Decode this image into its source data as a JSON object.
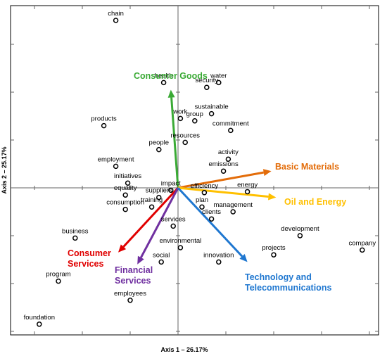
{
  "chart_data": {
    "type": "scatter",
    "xlabel": "Axis 1 – 26.17%",
    "ylabel": "Axis 2 – 25.17%",
    "grid": false,
    "xlim": [
      -3,
      4
    ],
    "ylim": [
      -3.5,
      4.1
    ],
    "points": [
      {
        "label": "chain",
        "x": -1.3,
        "y": 3.5
      },
      {
        "label": "health",
        "x": -0.3,
        "y": 2.2
      },
      {
        "label": "water",
        "x": 0.85,
        "y": 2.2
      },
      {
        "label": "security",
        "x": 0.6,
        "y": 2.1
      },
      {
        "label": "work",
        "x": 0.05,
        "y": 1.45
      },
      {
        "label": "sustainable",
        "x": 0.7,
        "y": 1.55
      },
      {
        "label": "group",
        "x": 0.35,
        "y": 1.4
      },
      {
        "label": "commitment",
        "x": 1.1,
        "y": 1.2
      },
      {
        "label": "products",
        "x": -1.55,
        "y": 1.3
      },
      {
        "label": "people",
        "x": -0.4,
        "y": 0.8
      },
      {
        "label": "resources",
        "x": 0.15,
        "y": 0.95
      },
      {
        "label": "activity",
        "x": 1.05,
        "y": 0.6
      },
      {
        "label": "emissions",
        "x": 0.95,
        "y": 0.35
      },
      {
        "label": "employment",
        "x": -1.3,
        "y": 0.45
      },
      {
        "label": "initiatives",
        "x": -1.05,
        "y": 0.1
      },
      {
        "label": "impact",
        "x": -0.15,
        "y": -0.05
      },
      {
        "label": "energy",
        "x": 1.45,
        "y": -0.08
      },
      {
        "label": "equality",
        "x": -1.1,
        "y": -0.15
      },
      {
        "label": "suppliers",
        "x": -0.4,
        "y": -0.2
      },
      {
        "label": "efficiency",
        "x": 0.55,
        "y": -0.1
      },
      {
        "label": "training",
        "x": -0.55,
        "y": -0.4
      },
      {
        "label": "plan",
        "x": 0.5,
        "y": -0.4
      },
      {
        "label": "management",
        "x": 1.15,
        "y": -0.5
      },
      {
        "label": "consumption",
        "x": -1.1,
        "y": -0.45
      },
      {
        "label": "clients",
        "x": 0.7,
        "y": -0.65
      },
      {
        "label": "services",
        "x": -0.1,
        "y": -0.8
      },
      {
        "label": "business",
        "x": -2.15,
        "y": -1.05
      },
      {
        "label": "development",
        "x": 2.55,
        "y": -1.0
      },
      {
        "label": "environmental",
        "x": 0.05,
        "y": -1.25
      },
      {
        "label": "projects",
        "x": 2.0,
        "y": -1.4
      },
      {
        "label": "company",
        "x": 3.85,
        "y": -1.3
      },
      {
        "label": "social",
        "x": -0.35,
        "y": -1.55
      },
      {
        "label": "innovation",
        "x": 0.85,
        "y": -1.55
      },
      {
        "label": "program",
        "x": -2.5,
        "y": -1.95
      },
      {
        "label": "employees",
        "x": -1.0,
        "y": -2.35
      },
      {
        "label": "foundation",
        "x": -2.9,
        "y": -2.85
      }
    ],
    "vectors": [
      {
        "label": "Consumer Goods",
        "x": -0.15,
        "y": 2.05,
        "color": "#3aaa35"
      },
      {
        "label": "Basic Materials",
        "x": 1.95,
        "y": 0.35,
        "color": "#e36c09"
      },
      {
        "label": "Oil and Energy",
        "x": 2.05,
        "y": -0.2,
        "color": "#ffc000"
      },
      {
        "label": "Consumer Services",
        "x": -1.25,
        "y": -1.35,
        "color": "#e00000"
      },
      {
        "label": "Financial Services",
        "x": -0.85,
        "y": -1.6,
        "color": "#7030a0"
      },
      {
        "label": "Technology and Telecommunications",
        "x": 1.45,
        "y": -1.55,
        "color": "#1f77d0"
      }
    ]
  }
}
